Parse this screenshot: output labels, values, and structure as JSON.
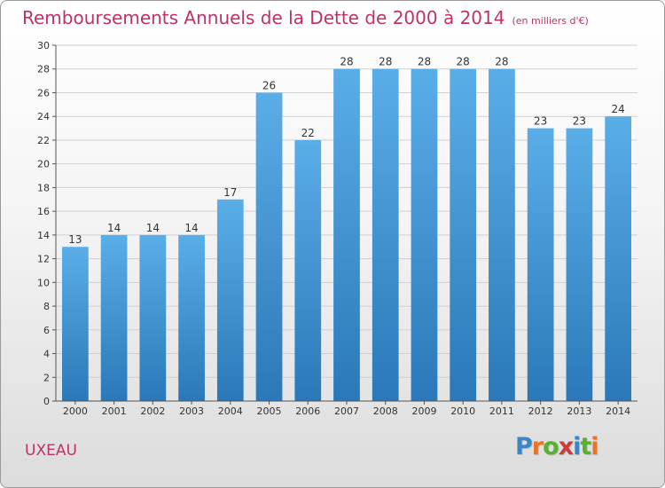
{
  "header": {
    "title": "Remboursements Annuels de la Dette de 2000 à 2014",
    "unit": "(en milliers d'€)"
  },
  "footer": {
    "place": "UXEAU",
    "logo": [
      "P",
      "r",
      "o",
      "x",
      "i",
      "t",
      "i"
    ]
  },
  "colors": {
    "accent": "#c0306a",
    "bar_top": "#5aaee8",
    "bar_bottom": "#2a78b8",
    "logo_letters": [
      "#3a86c8",
      "#e8742a",
      "#58b030",
      "#d03a3a",
      "#3a86c8",
      "#58b030",
      "#e8742a"
    ]
  },
  "chart_data": {
    "type": "bar",
    "title": "Remboursements Annuels de la Dette de 2000 à 2014",
    "categories": [
      "2000",
      "2001",
      "2002",
      "2003",
      "2004",
      "2005",
      "2006",
      "2007",
      "2008",
      "2009",
      "2010",
      "2011",
      "2012",
      "2013",
      "2014"
    ],
    "values": [
      13,
      14,
      14,
      14,
      17,
      26,
      22,
      28,
      28,
      28,
      28,
      28,
      23,
      23,
      24
    ],
    "ylim": [
      0,
      30
    ],
    "yticks": [
      0,
      2,
      4,
      6,
      8,
      10,
      12,
      14,
      16,
      18,
      20,
      22,
      24,
      26,
      28,
      30
    ],
    "grid": true,
    "xlabel": "",
    "ylabel": ""
  }
}
